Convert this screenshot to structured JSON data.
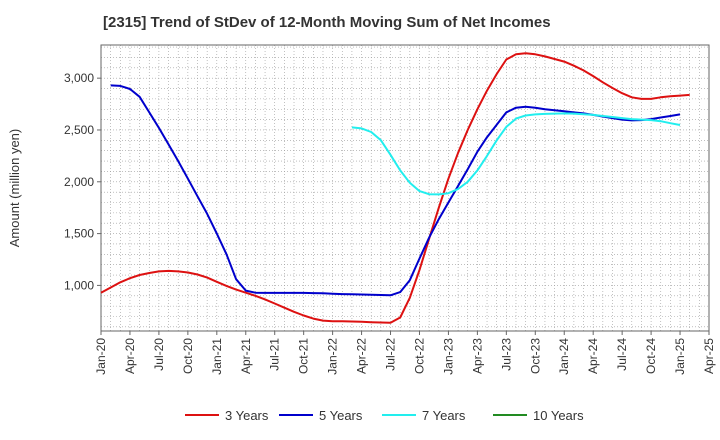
{
  "chart_data": {
    "type": "line",
    "title": "[2315]  Trend of StDev of 12-Month Moving Sum of Net Incomes",
    "xlabel": "",
    "ylabel": "Amount (million yen)",
    "ylim": [
      560,
      3320
    ],
    "yticks": [
      1000,
      1500,
      2000,
      2500,
      3000
    ],
    "ytick_labels": [
      "1,000",
      "1,500",
      "2,000",
      "2,500",
      "3,000"
    ],
    "xlim": [
      "2020-01",
      "2025-04"
    ],
    "xtick_labels": [
      "Jan-20",
      "Apr-20",
      "Jul-20",
      "Oct-20",
      "Jan-21",
      "Apr-21",
      "Jul-21",
      "Oct-21",
      "Jan-22",
      "Apr-22",
      "Jul-22",
      "Oct-22",
      "Jan-23",
      "Apr-23",
      "Jul-23",
      "Oct-23",
      "Jan-24",
      "Apr-24",
      "Jul-24",
      "Oct-24",
      "Jan-25",
      "Apr-25"
    ],
    "grid": true,
    "legend_position": "bottom",
    "series": [
      {
        "name": "3 Years",
        "color": "#dd1111",
        "points": [
          [
            "2020-01",
            930
          ],
          [
            "2020-02",
            980
          ],
          [
            "2020-03",
            1030
          ],
          [
            "2020-04",
            1070
          ],
          [
            "2020-05",
            1100
          ],
          [
            "2020-06",
            1120
          ],
          [
            "2020-07",
            1135
          ],
          [
            "2020-08",
            1140
          ],
          [
            "2020-09",
            1135
          ],
          [
            "2020-10",
            1125
          ],
          [
            "2020-11",
            1105
          ],
          [
            "2020-12",
            1075
          ],
          [
            "2021-01",
            1035
          ],
          [
            "2021-02",
            995
          ],
          [
            "2021-03",
            960
          ],
          [
            "2021-04",
            930
          ],
          [
            "2021-05",
            900
          ],
          [
            "2021-06",
            865
          ],
          [
            "2021-07",
            825
          ],
          [
            "2021-08",
            785
          ],
          [
            "2021-09",
            745
          ],
          [
            "2021-10",
            710
          ],
          [
            "2021-11",
            680
          ],
          [
            "2021-12",
            660
          ],
          [
            "2022-01",
            655
          ],
          [
            "2022-02",
            655
          ],
          [
            "2022-03",
            652
          ],
          [
            "2022-04",
            650
          ],
          [
            "2022-05",
            645
          ],
          [
            "2022-06",
            642
          ],
          [
            "2022-07",
            640
          ],
          [
            "2022-08",
            690
          ],
          [
            "2022-09",
            880
          ],
          [
            "2022-10",
            1150
          ],
          [
            "2022-11",
            1450
          ],
          [
            "2022-12",
            1750
          ],
          [
            "2023-01",
            2030
          ],
          [
            "2023-02",
            2280
          ],
          [
            "2023-03",
            2500
          ],
          [
            "2023-04",
            2700
          ],
          [
            "2023-05",
            2880
          ],
          [
            "2023-06",
            3040
          ],
          [
            "2023-07",
            3180
          ],
          [
            "2023-08",
            3230
          ],
          [
            "2023-09",
            3240
          ],
          [
            "2023-10",
            3230
          ],
          [
            "2023-11",
            3210
          ],
          [
            "2023-12",
            3185
          ],
          [
            "2024-01",
            3160
          ],
          [
            "2024-02",
            3120
          ],
          [
            "2024-03",
            3075
          ],
          [
            "2024-04",
            3020
          ],
          [
            "2024-05",
            2960
          ],
          [
            "2024-06",
            2905
          ],
          [
            "2024-07",
            2855
          ],
          [
            "2024-08",
            2815
          ],
          [
            "2024-09",
            2800
          ],
          [
            "2024-10",
            2800
          ],
          [
            "2024-11",
            2815
          ],
          [
            "2024-12",
            2825
          ],
          [
            "2025-01",
            2832
          ],
          [
            "2025-02",
            2838
          ]
        ]
      },
      {
        "name": "5 Years",
        "color": "#0000cc",
        "points": [
          [
            "2020-02",
            2930
          ],
          [
            "2020-03",
            2925
          ],
          [
            "2020-04",
            2895
          ],
          [
            "2020-05",
            2820
          ],
          [
            "2020-06",
            2670
          ],
          [
            "2020-07",
            2520
          ],
          [
            "2020-08",
            2360
          ],
          [
            "2020-09",
            2200
          ],
          [
            "2020-10",
            2030
          ],
          [
            "2020-11",
            1860
          ],
          [
            "2020-12",
            1690
          ],
          [
            "2021-01",
            1500
          ],
          [
            "2021-02",
            1300
          ],
          [
            "2021-03",
            1060
          ],
          [
            "2021-04",
            950
          ],
          [
            "2021-05",
            930
          ],
          [
            "2021-06",
            928
          ],
          [
            "2021-07",
            928
          ],
          [
            "2021-08",
            928
          ],
          [
            "2021-09",
            928
          ],
          [
            "2021-10",
            928
          ],
          [
            "2021-11",
            926
          ],
          [
            "2021-12",
            924
          ],
          [
            "2022-01",
            920
          ],
          [
            "2022-02",
            916
          ],
          [
            "2022-03",
            914
          ],
          [
            "2022-04",
            912
          ],
          [
            "2022-05",
            910
          ],
          [
            "2022-06",
            907
          ],
          [
            "2022-07",
            905
          ],
          [
            "2022-08",
            935
          ],
          [
            "2022-09",
            1050
          ],
          [
            "2022-10",
            1260
          ],
          [
            "2022-11",
            1460
          ],
          [
            "2022-12",
            1640
          ],
          [
            "2023-01",
            1800
          ],
          [
            "2023-02",
            1960
          ],
          [
            "2023-03",
            2120
          ],
          [
            "2023-04",
            2290
          ],
          [
            "2023-05",
            2430
          ],
          [
            "2023-06",
            2550
          ],
          [
            "2023-07",
            2670
          ],
          [
            "2023-08",
            2715
          ],
          [
            "2023-09",
            2725
          ],
          [
            "2023-10",
            2715
          ],
          [
            "2023-11",
            2700
          ],
          [
            "2023-12",
            2690
          ],
          [
            "2024-01",
            2680
          ],
          [
            "2024-02",
            2670
          ],
          [
            "2024-03",
            2660
          ],
          [
            "2024-04",
            2645
          ],
          [
            "2024-05",
            2630
          ],
          [
            "2024-06",
            2615
          ],
          [
            "2024-07",
            2600
          ],
          [
            "2024-08",
            2592
          ],
          [
            "2024-09",
            2595
          ],
          [
            "2024-10",
            2605
          ],
          [
            "2024-11",
            2620
          ],
          [
            "2024-12",
            2635
          ],
          [
            "2025-01",
            2650
          ]
        ]
      },
      {
        "name": "7 Years",
        "color": "#22eeee",
        "points": [
          [
            "2022-03",
            2525
          ],
          [
            "2022-04",
            2515
          ],
          [
            "2022-05",
            2480
          ],
          [
            "2022-06",
            2400
          ],
          [
            "2022-07",
            2260
          ],
          [
            "2022-08",
            2110
          ],
          [
            "2022-09",
            1990
          ],
          [
            "2022-10",
            1910
          ],
          [
            "2022-11",
            1880
          ],
          [
            "2022-12",
            1878
          ],
          [
            "2023-01",
            1890
          ],
          [
            "2023-02",
            1930
          ],
          [
            "2023-03",
            2000
          ],
          [
            "2023-04",
            2110
          ],
          [
            "2023-05",
            2250
          ],
          [
            "2023-06",
            2400
          ],
          [
            "2023-07",
            2530
          ],
          [
            "2023-08",
            2610
          ],
          [
            "2023-09",
            2640
          ],
          [
            "2023-10",
            2650
          ],
          [
            "2023-11",
            2655
          ],
          [
            "2023-12",
            2658
          ],
          [
            "2024-01",
            2660
          ],
          [
            "2024-02",
            2658
          ],
          [
            "2024-03",
            2652
          ],
          [
            "2024-04",
            2645
          ],
          [
            "2024-05",
            2635
          ],
          [
            "2024-06",
            2625
          ],
          [
            "2024-07",
            2615
          ],
          [
            "2024-08",
            2605
          ],
          [
            "2024-09",
            2600
          ],
          [
            "2024-10",
            2595
          ],
          [
            "2024-11",
            2585
          ],
          [
            "2024-12",
            2565
          ],
          [
            "2025-01",
            2548
          ]
        ]
      },
      {
        "name": "10 Years",
        "color": "#228b22",
        "points": []
      }
    ]
  }
}
